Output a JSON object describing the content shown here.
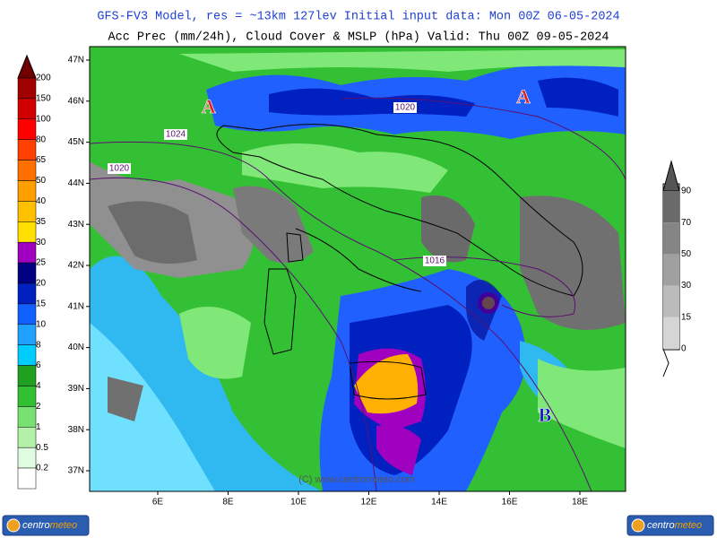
{
  "header": {
    "title": "GFS-FV3 Model, res = ~13km 127lev   Initial input data: Mon 00Z 06-05-2024",
    "subtitle": "Acc Prec (mm/24h), Cloud Cover & MSLP (hPa)  Valid: Thu 00Z 09-05-2024"
  },
  "map": {
    "lat_labels": [
      "47N",
      "46N",
      "45N",
      "44N",
      "43N",
      "42N",
      "41N",
      "40N",
      "39N",
      "38N",
      "37N"
    ],
    "lon_labels": [
      "6E",
      "8E",
      "10E",
      "12E",
      "14E",
      "16E",
      "18E"
    ],
    "isobar_labels": [
      "1024",
      "1020",
      "1020",
      "1016"
    ],
    "pressure_centers": [
      "A",
      "A",
      "B"
    ],
    "watermark": "(C) www.centrometeo.com"
  },
  "legends": {
    "precip": [
      "200",
      "150",
      "100",
      "80",
      "65",
      "50",
      "40",
      "35",
      "30",
      "25",
      "20",
      "15",
      "10",
      "8",
      "6",
      "4",
      "2",
      "1",
      "0.5",
      "0.2"
    ],
    "cloud": [
      "90",
      "70",
      "50",
      "30",
      "15",
      "0"
    ]
  },
  "logo": {
    "part1": "centro",
    "part2": "meteo"
  }
}
